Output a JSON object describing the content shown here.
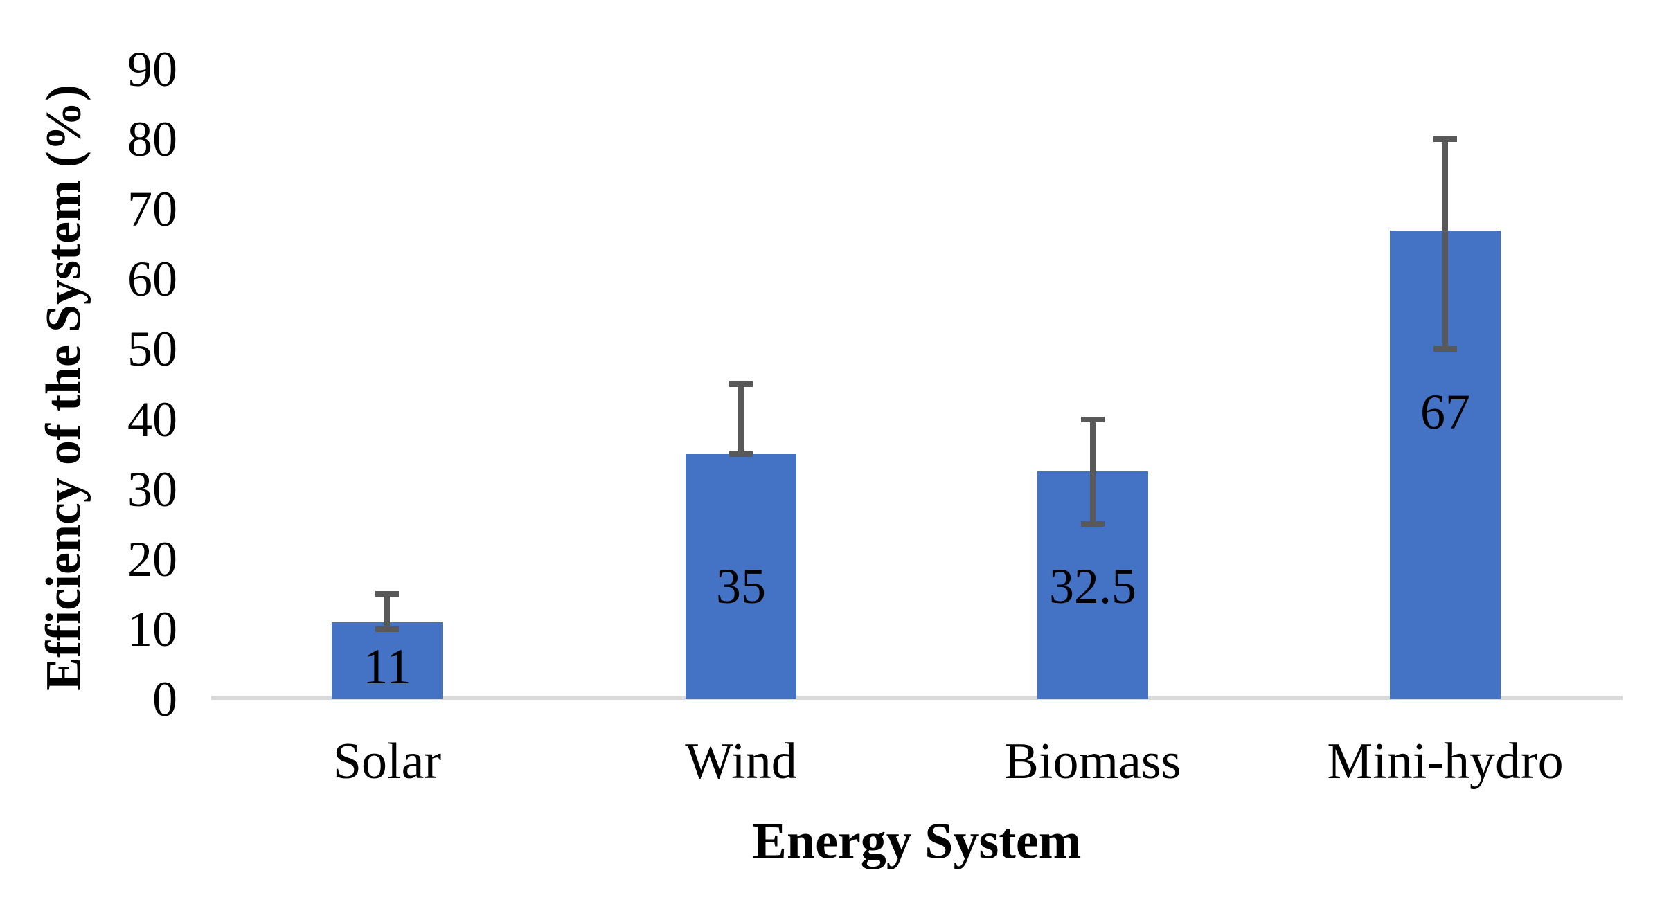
{
  "chart_data": {
    "type": "bar",
    "title": "",
    "xlabel": "Energy System",
    "ylabel": "Efficiency of the System (%)",
    "categories": [
      "Solar",
      "Wind",
      "Biomass",
      "Mini-hydro"
    ],
    "values": [
      11,
      35,
      32.5,
      67
    ],
    "data_labels": [
      "11",
      "35",
      "32.5",
      "67"
    ],
    "data_label_pos_values": [
      4.6,
      16.1,
      16.1,
      41.0
    ],
    "error_bars": [
      {
        "low": 10,
        "high": 15
      },
      {
        "low": 35,
        "high": 45
      },
      {
        "low": 25,
        "high": 40
      },
      {
        "low": 50,
        "high": 80
      }
    ],
    "y_ticks": [
      90,
      80,
      70,
      60,
      50,
      40,
      30,
      20,
      10,
      0
    ],
    "ylim": [
      0,
      90
    ],
    "grid": false,
    "legend": "none",
    "colors": {
      "bar_fill": "#4472C4",
      "error_bar": "#595959",
      "axis_line": "#D9D9D9",
      "text": "#000000"
    }
  }
}
